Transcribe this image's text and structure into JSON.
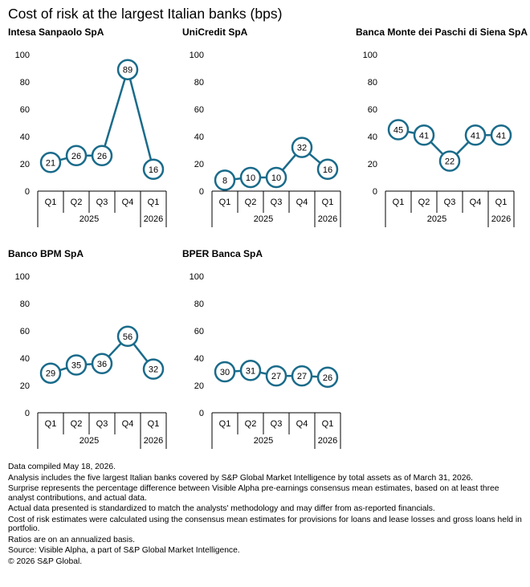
{
  "title": "Cost of risk at the largest Italian banks (bps)",
  "colors": {
    "series": "#1a6b8a",
    "axis": "#000000",
    "text": "#000000"
  },
  "chart_data": [
    {
      "type": "line",
      "title": "Intesa Sanpaolo SpA",
      "categories": [
        "Q1",
        "Q2",
        "Q3",
        "Q4",
        "Q1"
      ],
      "years": [
        {
          "label": "2025",
          "span": 4
        },
        {
          "label": "2026",
          "span": 1
        }
      ],
      "values": [
        21,
        26,
        26,
        89,
        16
      ],
      "ylim": [
        0,
        100
      ],
      "yticks": [
        0,
        20,
        40,
        60,
        80,
        100
      ],
      "grid": false
    },
    {
      "type": "line",
      "title": "UniCredit SpA",
      "categories": [
        "Q1",
        "Q2",
        "Q3",
        "Q4",
        "Q1"
      ],
      "years": [
        {
          "label": "2025",
          "span": 4
        },
        {
          "label": "2026",
          "span": 1
        }
      ],
      "values": [
        8,
        10,
        10,
        32,
        16
      ],
      "ylim": [
        0,
        100
      ],
      "yticks": [
        0,
        20,
        40,
        60,
        80,
        100
      ],
      "grid": false
    },
    {
      "type": "line",
      "title": "Banca Monte dei Paschi di Siena SpA",
      "categories": [
        "Q1",
        "Q2",
        "Q3",
        "Q4",
        "Q1"
      ],
      "years": [
        {
          "label": "2025",
          "span": 4
        },
        {
          "label": "2026",
          "span": 1
        }
      ],
      "values": [
        45,
        41,
        22,
        41,
        41
      ],
      "ylim": [
        0,
        100
      ],
      "yticks": [
        0,
        20,
        40,
        60,
        80,
        100
      ],
      "grid": false
    },
    {
      "type": "line",
      "title": "Banco BPM SpA",
      "categories": [
        "Q1",
        "Q2",
        "Q3",
        "Q4",
        "Q1"
      ],
      "years": [
        {
          "label": "2025",
          "span": 4
        },
        {
          "label": "2026",
          "span": 1
        }
      ],
      "values": [
        29,
        35,
        36,
        56,
        32
      ],
      "ylim": [
        0,
        100
      ],
      "yticks": [
        0,
        20,
        40,
        60,
        80,
        100
      ],
      "grid": false
    },
    {
      "type": "line",
      "title": "BPER Banca SpA",
      "categories": [
        "Q1",
        "Q2",
        "Q3",
        "Q4",
        "Q1"
      ],
      "years": [
        {
          "label": "2025",
          "span": 4
        },
        {
          "label": "2026",
          "span": 1
        }
      ],
      "values": [
        30,
        31,
        27,
        27,
        26
      ],
      "ylim": [
        0,
        100
      ],
      "yticks": [
        0,
        20,
        40,
        60,
        80,
        100
      ],
      "grid": false
    }
  ],
  "notes": [
    "Data compiled May 18, 2026.",
    "Analysis includes the five largest Italian banks covered by S&P Global Market Intelligence by total assets as of March 31, 2026.",
    "Surprise represents the percentage difference between Visible Alpha pre-earnings consensus mean estimates, based on at least three analyst contributions, and actual data.",
    "Actual data presented is standardized to match the analysts' methodology and may differ from as-reported financials.",
    "Cost of risk estimates were calculated using the consensus mean estimates for provisions for loans and lease losses and gross loans held in portfolio.",
    "Ratios are on an annualized basis.",
    "Source: Visible Alpha, a part of S&P Global Market Intelligence.",
    "© 2026 S&P Global."
  ]
}
